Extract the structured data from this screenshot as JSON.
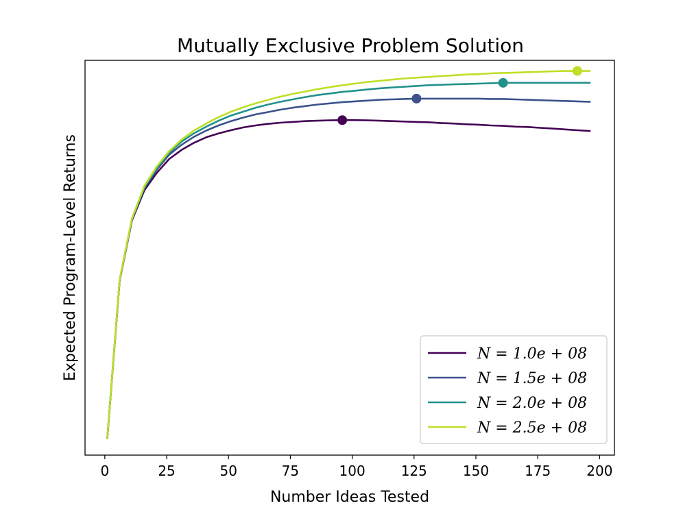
{
  "chart_data": {
    "type": "line",
    "title": "Mutually Exclusive Problem Solution",
    "xlabel": "Number Ideas Tested",
    "ylabel": "Expected Program-Level Returns",
    "xlim": [
      -8,
      206
    ],
    "ylim": [
      0,
      100
    ],
    "y_ticks_shown": false,
    "x_ticks": [
      0,
      25,
      50,
      75,
      100,
      125,
      150,
      175,
      200
    ],
    "x_tick_labels": [
      "0",
      "25",
      "50",
      "75",
      "100",
      "125",
      "150",
      "175",
      "200"
    ],
    "legend_placement": "lower-right",
    "grid": false,
    "x": [
      1,
      6,
      11,
      16,
      21,
      26,
      31,
      36,
      41,
      46,
      51,
      56,
      61,
      66,
      71,
      76,
      81,
      86,
      91,
      96,
      101,
      106,
      111,
      116,
      121,
      126,
      131,
      136,
      141,
      146,
      151,
      156,
      161,
      166,
      171,
      176,
      181,
      186,
      191,
      196
    ],
    "series": [
      {
        "name": "N = 1.0e + 08",
        "legend_label": "N = 1.0e + 08",
        "color": "#440154",
        "values": [
          4.3,
          44.2,
          59.5,
          67.1,
          71.5,
          75.0,
          77.3,
          79.1,
          80.5,
          81.5,
          82.3,
          83.0,
          83.5,
          83.9,
          84.2,
          84.4,
          84.6,
          84.7,
          84.8,
          84.85,
          84.85,
          84.8,
          84.7,
          84.6,
          84.5,
          84.4,
          84.3,
          84.1,
          84.0,
          83.8,
          83.7,
          83.5,
          83.4,
          83.2,
          83.1,
          82.9,
          82.7,
          82.5,
          82.3,
          82.1
        ],
        "optimum": {
          "x": 96,
          "y": 84.85
        }
      },
      {
        "name": "N = 1.5e + 08",
        "legend_label": "N = 1.5e + 08",
        "color": "#3b528b",
        "values": [
          4.3,
          44.3,
          59.7,
          67.6,
          72.3,
          76.1,
          78.6,
          80.6,
          82.2,
          83.5,
          84.6,
          85.5,
          86.3,
          86.9,
          87.5,
          88.0,
          88.4,
          88.8,
          89.1,
          89.4,
          89.6,
          89.8,
          90.0,
          90.1,
          90.2,
          90.3,
          90.3,
          90.3,
          90.3,
          90.3,
          90.3,
          90.2,
          90.2,
          90.1,
          90.0,
          89.9,
          89.8,
          89.7,
          89.6,
          89.5
        ],
        "optimum": {
          "x": 126,
          "y": 90.3
        }
      },
      {
        "name": "N = 2.0e + 08",
        "legend_label": "N = 2.0e + 08",
        "color": "#21918c",
        "values": [
          4.3,
          44.4,
          59.9,
          67.9,
          72.7,
          76.6,
          79.4,
          81.5,
          83.2,
          84.7,
          86.0,
          87.0,
          88.0,
          88.8,
          89.5,
          90.1,
          90.7,
          91.2,
          91.6,
          92.0,
          92.3,
          92.6,
          92.9,
          93.1,
          93.3,
          93.5,
          93.7,
          93.8,
          93.9,
          94.0,
          94.1,
          94.2,
          94.3,
          94.3,
          94.3,
          94.3,
          94.3,
          94.3,
          94.3,
          94.3
        ],
        "optimum": {
          "x": 161,
          "y": 94.3
        }
      },
      {
        "name": "N = 2.5e + 08",
        "legend_label": "N = 2.5e + 08",
        "color": "#bddf26",
        "values": [
          4.3,
          44.5,
          60.0,
          68.2,
          73.1,
          77.0,
          79.9,
          82.2,
          84.0,
          85.6,
          87.0,
          88.1,
          89.1,
          90.0,
          90.8,
          91.5,
          92.1,
          92.7,
          93.2,
          93.7,
          94.1,
          94.5,
          94.8,
          95.1,
          95.4,
          95.6,
          95.8,
          96.0,
          96.2,
          96.4,
          96.5,
          96.7,
          96.8,
          96.9,
          97.0,
          97.1,
          97.2,
          97.3,
          97.3,
          97.3
        ],
        "optimum": {
          "x": 191,
          "y": 97.3
        }
      }
    ]
  }
}
